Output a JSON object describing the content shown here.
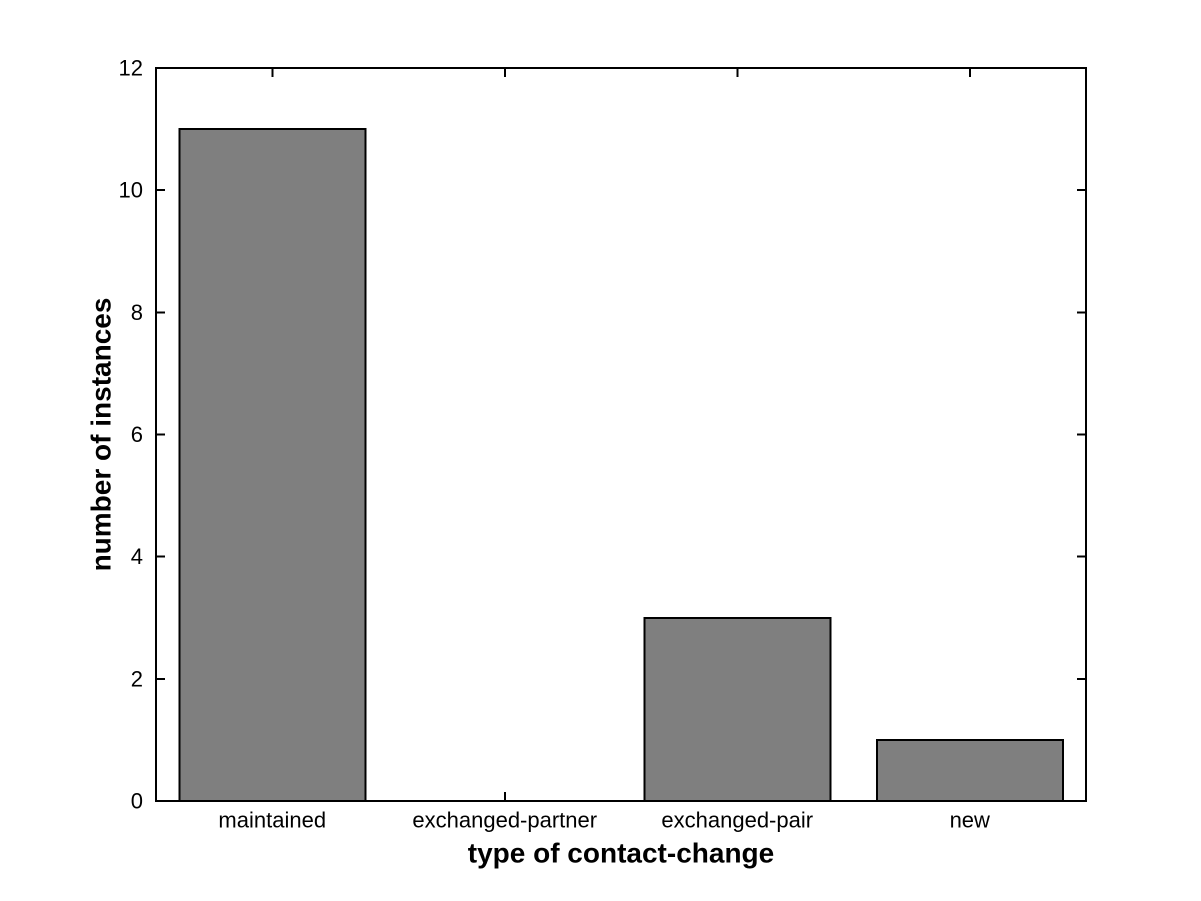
{
  "figure": {
    "background": "#FFFFFF"
  },
  "chart_data": {
    "type": "bar",
    "categories": [
      "maintained",
      "exchanged-partner",
      "exchanged-pair",
      "new"
    ],
    "values": [
      11,
      0,
      3,
      1
    ],
    "title": "",
    "xlabel": "type of contact-change",
    "ylabel": "number of instances",
    "ylim": [
      0,
      12
    ],
    "yticks": [
      0,
      2,
      4,
      6,
      8,
      10,
      12
    ],
    "ytick_labels": [
      "0",
      "2",
      "4",
      "6",
      "8",
      "10",
      "12"
    ],
    "grid": false,
    "legend": null,
    "bar_width_fraction": 0.8,
    "bar_fill_color": "#7F7F7F",
    "bar_edge_color": "#000000",
    "axis_color": "#000000",
    "plot_background": "#FFFFFF",
    "tick_direction": "in",
    "box": true
  }
}
